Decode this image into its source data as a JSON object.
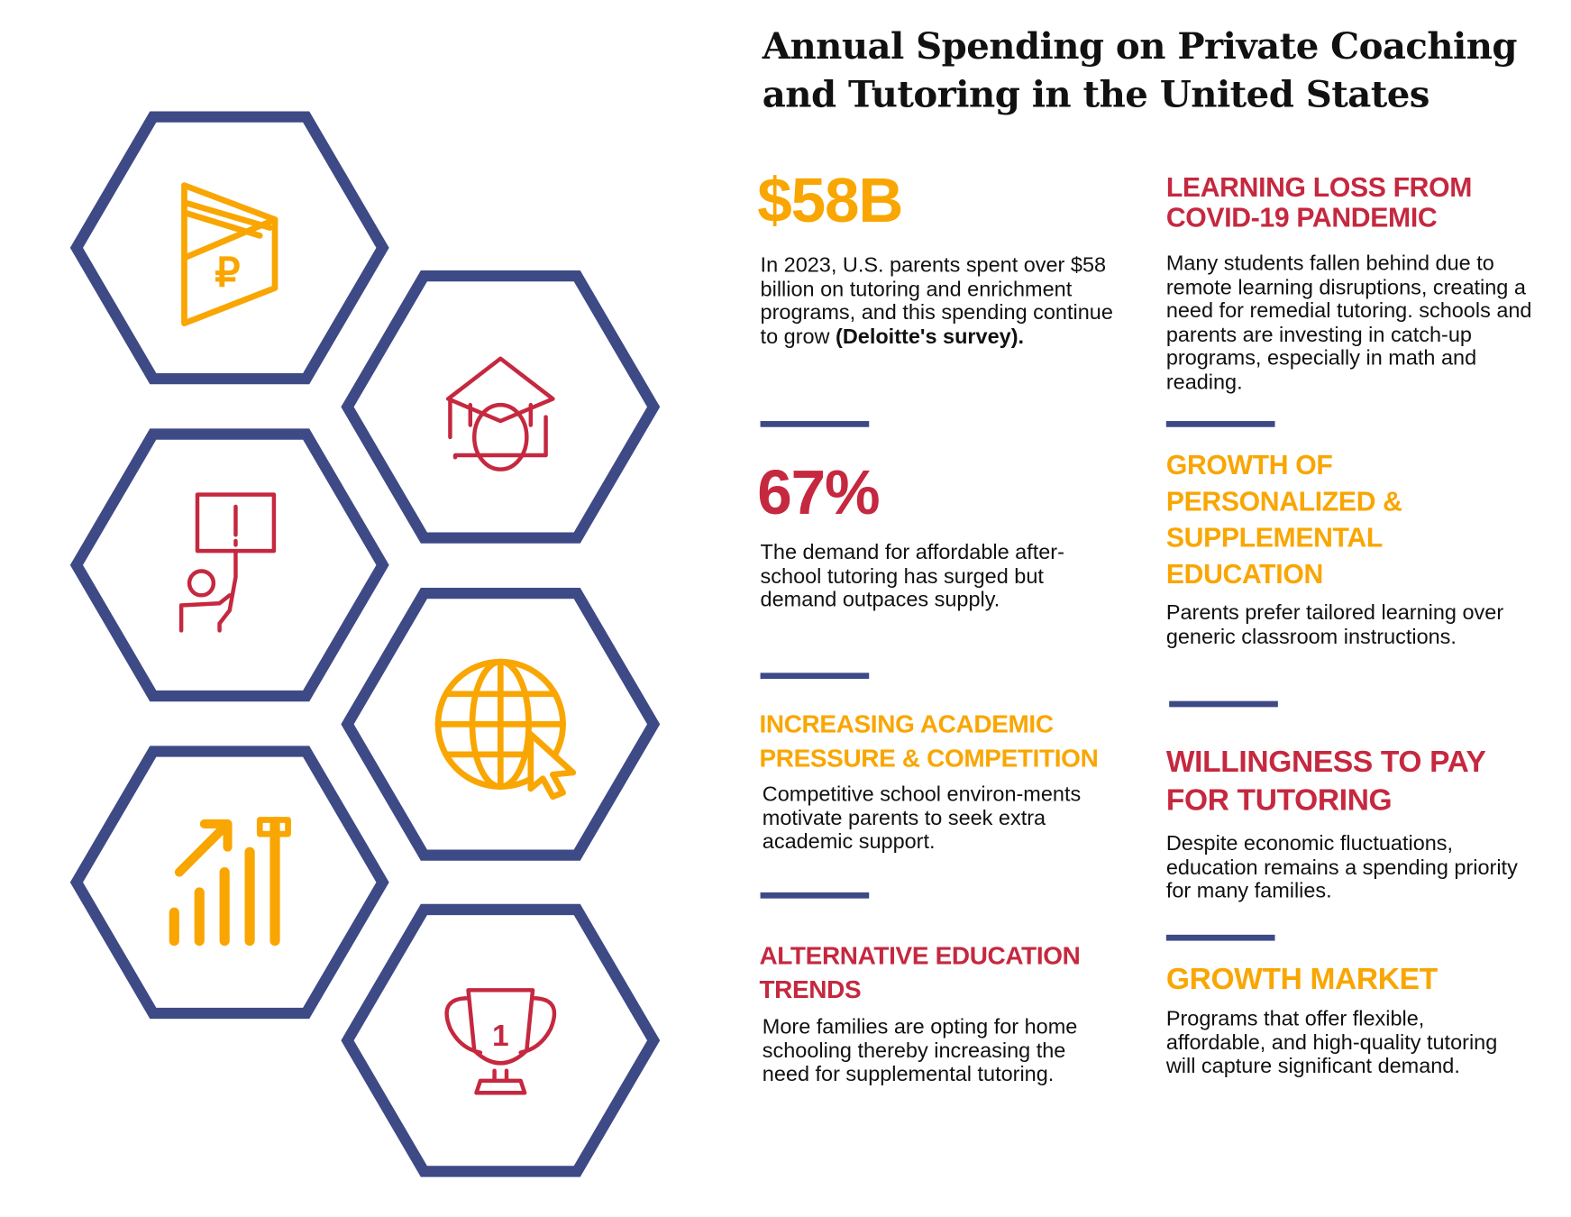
{
  "title": "Annual Spending on Private Coaching and Tutoring in the United States",
  "colors": {
    "navy": "#3d4a86",
    "orange": "#f9a602",
    "red": "#c5283f"
  },
  "hexagons": [
    {
      "icon": "wallet-ruble-icon",
      "color": "orange"
    },
    {
      "icon": "graduate-student-icon",
      "color": "red"
    },
    {
      "icon": "person-holding-alert-sign-icon",
      "color": "red"
    },
    {
      "icon": "globe-cursor-icon",
      "color": "orange"
    },
    {
      "icon": "growth-bar-chart-icon",
      "color": "orange"
    },
    {
      "icon": "trophy-first-place-icon",
      "color": "red"
    }
  ],
  "left": {
    "stat1": {
      "value": "$58B",
      "text": "In 2023, U.S. parents spent over $58 billion on tutoring and enrichment programs, and this spending continue to grow ",
      "source": "(Deloitte's survey)."
    },
    "stat2": {
      "value": "67%",
      "text": "The demand for affordable after-school tutoring has surged but demand outpaces supply."
    },
    "pressure": {
      "heading": "Increasing Academic Pressure & Competition",
      "text": "Competitive school environ-ments motivate parents to seek extra academic support."
    },
    "alternative": {
      "heading": "Alternative Education Trends",
      "text": "More families are opting for home schooling thereby increasing the need for supplemental tutoring."
    }
  },
  "right": {
    "learning_loss": {
      "heading": "Learning Loss from COVID-19 Pandemic",
      "text": "Many students fallen behind due to remote learning disruptions, creating a need for remedial tutoring. schools and parents are investing in catch-up programs, especially in math and reading."
    },
    "personalized": {
      "heading": "Growth of Personalized & Supplemental Education",
      "text": "Parents prefer tailored learning over generic classroom instructions."
    },
    "willingness": {
      "heading": "Willingness to Pay for Tutoring",
      "text": "Despite economic fluctuations, education remains a spending priority for many families."
    },
    "growth_market": {
      "heading": "Growth Market",
      "text": "Programs that offer flexible, affordable, and high-quality tutoring will capture significant demand."
    }
  }
}
